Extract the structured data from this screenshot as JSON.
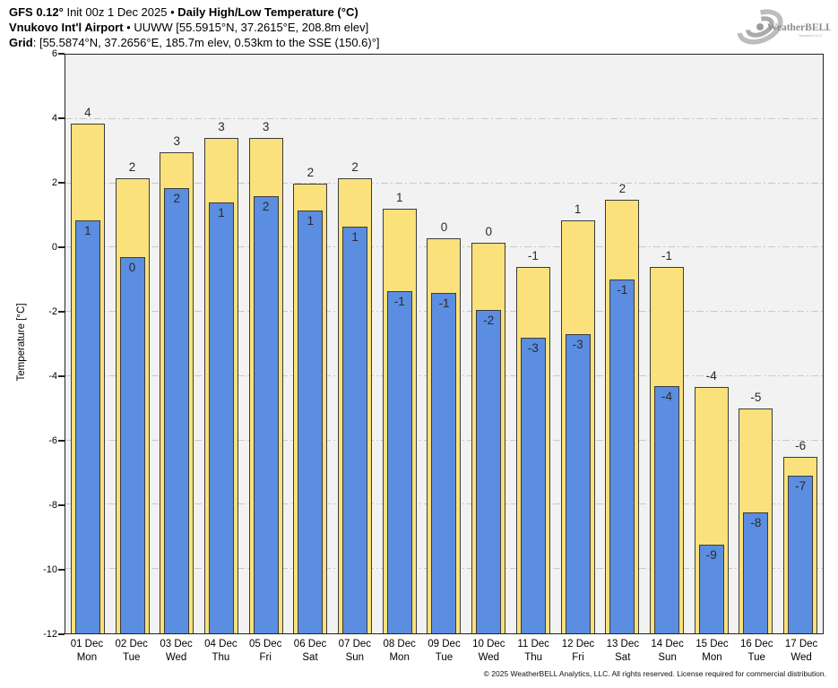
{
  "header": {
    "line1_bold1": "GFS 0.12°",
    "line1_regular": " Init 00z 1 Dec 2025 • ",
    "line1_bold2": "Daily High/Low Temperature (°C)",
    "line2_bold": "Vnukovo Int'l Airport",
    "line2_regular": " • UUWW [55.5915°N, 37.2615°E, 208.8m elev]",
    "line3_bold": "Grid",
    "line3_regular": ": [55.5874°N, 37.2656°E, 185.7m elev, 0.53km to the SSE (150.6)°]"
  },
  "logo": {
    "brand": "WeatherBELL",
    "brand_sub": "Analytics LLC"
  },
  "chart_data": {
    "type": "bar",
    "title": "GFS 0.12° Init 00z 1 Dec 2025 • Daily High/Low Temperature (°C)",
    "subtitle": "Vnukovo Int'l Airport • UUWW [55.5915°N, 37.2615°E, 208.8m elev]",
    "grid_point": "[55.5874°N, 37.2656°E, 185.7m elev, 0.53km to the SSE (150.6)°]",
    "xlabel": "",
    "ylabel": "Temperature [°C]",
    "ylim": [
      -12,
      6
    ],
    "yticks": [
      6,
      4,
      2,
      0,
      -2,
      -4,
      -6,
      -8,
      -10,
      -12
    ],
    "grid": "horizontal dash-dot, on",
    "legend_position": "none",
    "bars_anchored_at": -12,
    "categories": [
      "01 Dec",
      "02 Dec",
      "03 Dec",
      "04 Dec",
      "05 Dec",
      "06 Dec",
      "07 Dec",
      "08 Dec",
      "09 Dec",
      "10 Dec",
      "11 Dec",
      "12 Dec",
      "13 Dec",
      "14 Dec",
      "15 Dec",
      "16 Dec",
      "17 Dec"
    ],
    "weekdays": [
      "Mon",
      "Tue",
      "Wed",
      "Thu",
      "Fri",
      "Sat",
      "Sun",
      "Mon",
      "Tue",
      "Wed",
      "Thu",
      "Fri",
      "Sat",
      "Sun",
      "Mon",
      "Tue",
      "Wed"
    ],
    "series": [
      {
        "name": "Daily High",
        "color": "#fbe17c",
        "bar_values": [
          3.85,
          2.15,
          2.95,
          3.4,
          3.4,
          2.0,
          2.15,
          1.2,
          0.3,
          0.15,
          -0.6,
          0.85,
          1.5,
          -0.6,
          -4.35,
          -5.0,
          -6.5
        ],
        "labels": [
          4,
          2,
          3,
          3,
          3,
          2,
          2,
          1,
          0,
          0,
          -1,
          1,
          2,
          -1,
          -4,
          -5,
          -6
        ]
      },
      {
        "name": "Daily Low",
        "color": "#5b8de0",
        "bar_values": [
          0.85,
          -0.3,
          1.85,
          1.4,
          1.6,
          1.15,
          0.65,
          -1.35,
          -1.4,
          -1.95,
          -2.8,
          -2.7,
          -1.0,
          -4.3,
          -9.25,
          -8.25,
          -7.1
        ],
        "labels": [
          1,
          0,
          2,
          1,
          2,
          1,
          1,
          -1,
          -1,
          -2,
          -3,
          -3,
          -1,
          -4,
          -9,
          -8,
          -7
        ]
      }
    ]
  },
  "colors": {
    "high_bar": "#fbe17c",
    "low_bar": "#5b8de0",
    "bar_border": "#3b3b3b",
    "plot_background": "#f2f2f2",
    "gridline": "#c9c9c9",
    "axis": "#222222"
  },
  "footer": {
    "copyright": "© 2025 WeatherBELL Analytics, LLC. All rights reserved. License required for commercial distribution."
  }
}
